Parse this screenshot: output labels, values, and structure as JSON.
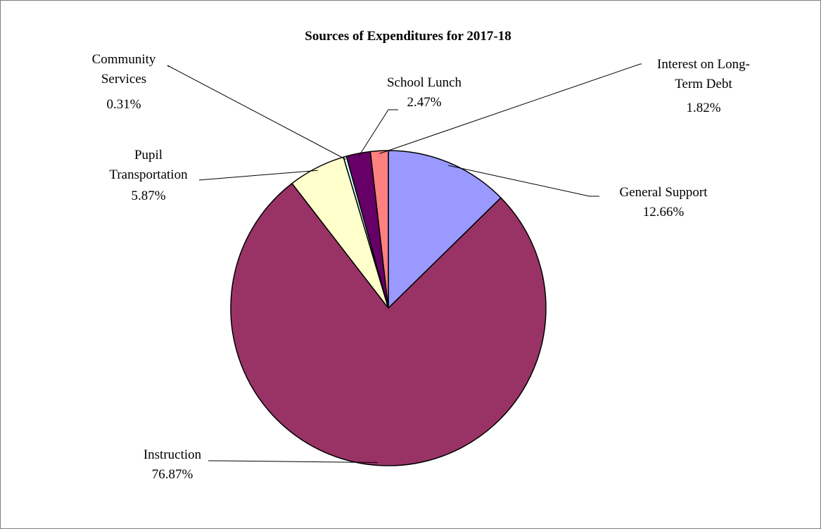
{
  "chart_data": {
    "type": "pie",
    "title": "Sources of Expenditures for 2017-18",
    "slices": [
      {
        "name": "General Support",
        "label_lines": [
          "General Support"
        ],
        "value": 12.66,
        "value_label": "12.66%",
        "color": "#9999FF"
      },
      {
        "name": "Instruction",
        "label_lines": [
          "Instruction"
        ],
        "value": 76.87,
        "value_label": "76.87%",
        "color": "#993366"
      },
      {
        "name": "Pupil Transportation",
        "label_lines": [
          "Pupil",
          "Transportation"
        ],
        "value": 5.87,
        "value_label": "5.87%",
        "color": "#FFFFCC"
      },
      {
        "name": "Community Services",
        "label_lines": [
          "Community",
          "Services"
        ],
        "value": 0.31,
        "value_label": "0.31%",
        "color": "#CCFFFF"
      },
      {
        "name": "School Lunch",
        "label_lines": [
          "School Lunch"
        ],
        "value": 2.47,
        "value_label": "2.47%",
        "color": "#660066"
      },
      {
        "name": "Interest on Long-Term Debt",
        "label_lines": [
          "Interest on Long-",
          "Term Debt"
        ],
        "value": 1.82,
        "value_label": "1.82%",
        "color": "#FF8080"
      }
    ]
  }
}
